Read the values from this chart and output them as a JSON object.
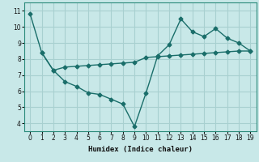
{
  "xlabel": "Humidex (Indice chaleur)",
  "bg_color": "#c8e8e8",
  "grid_color": "#a8d0d0",
  "line_color": "#1a6e6a",
  "x_range_min": -0.5,
  "x_range_max": 19.5,
  "y_range_min": 3.5,
  "y_range_max": 11.5,
  "yticks": [
    4,
    5,
    6,
    7,
    8,
    9,
    10,
    11
  ],
  "xticks": [
    0,
    1,
    2,
    3,
    4,
    5,
    6,
    7,
    8,
    9,
    10,
    11,
    12,
    13,
    14,
    15,
    16,
    17,
    18,
    19
  ],
  "line1_x": [
    0,
    1,
    2,
    3,
    4,
    5,
    6,
    7,
    8,
    9,
    10,
    11,
    12,
    13,
    14,
    15,
    16,
    17,
    18,
    19
  ],
  "line1_y": [
    10.8,
    8.4,
    7.3,
    6.6,
    6.3,
    5.9,
    5.8,
    5.5,
    5.2,
    3.8,
    5.9,
    8.2,
    8.9,
    10.5,
    9.7,
    9.4,
    9.9,
    9.3,
    9.0,
    8.5
  ],
  "line2_x": [
    1,
    2,
    3,
    4,
    5,
    6,
    7,
    8,
    9,
    10,
    11,
    12,
    13,
    14,
    15,
    16,
    17,
    18,
    19
  ],
  "line2_y": [
    8.4,
    7.3,
    7.5,
    7.55,
    7.6,
    7.65,
    7.7,
    7.75,
    7.8,
    8.1,
    8.15,
    8.2,
    8.25,
    8.3,
    8.35,
    8.4,
    8.45,
    8.5,
    8.5
  ],
  "marker": "D",
  "markersize": 2.5,
  "linewidth": 1.0
}
